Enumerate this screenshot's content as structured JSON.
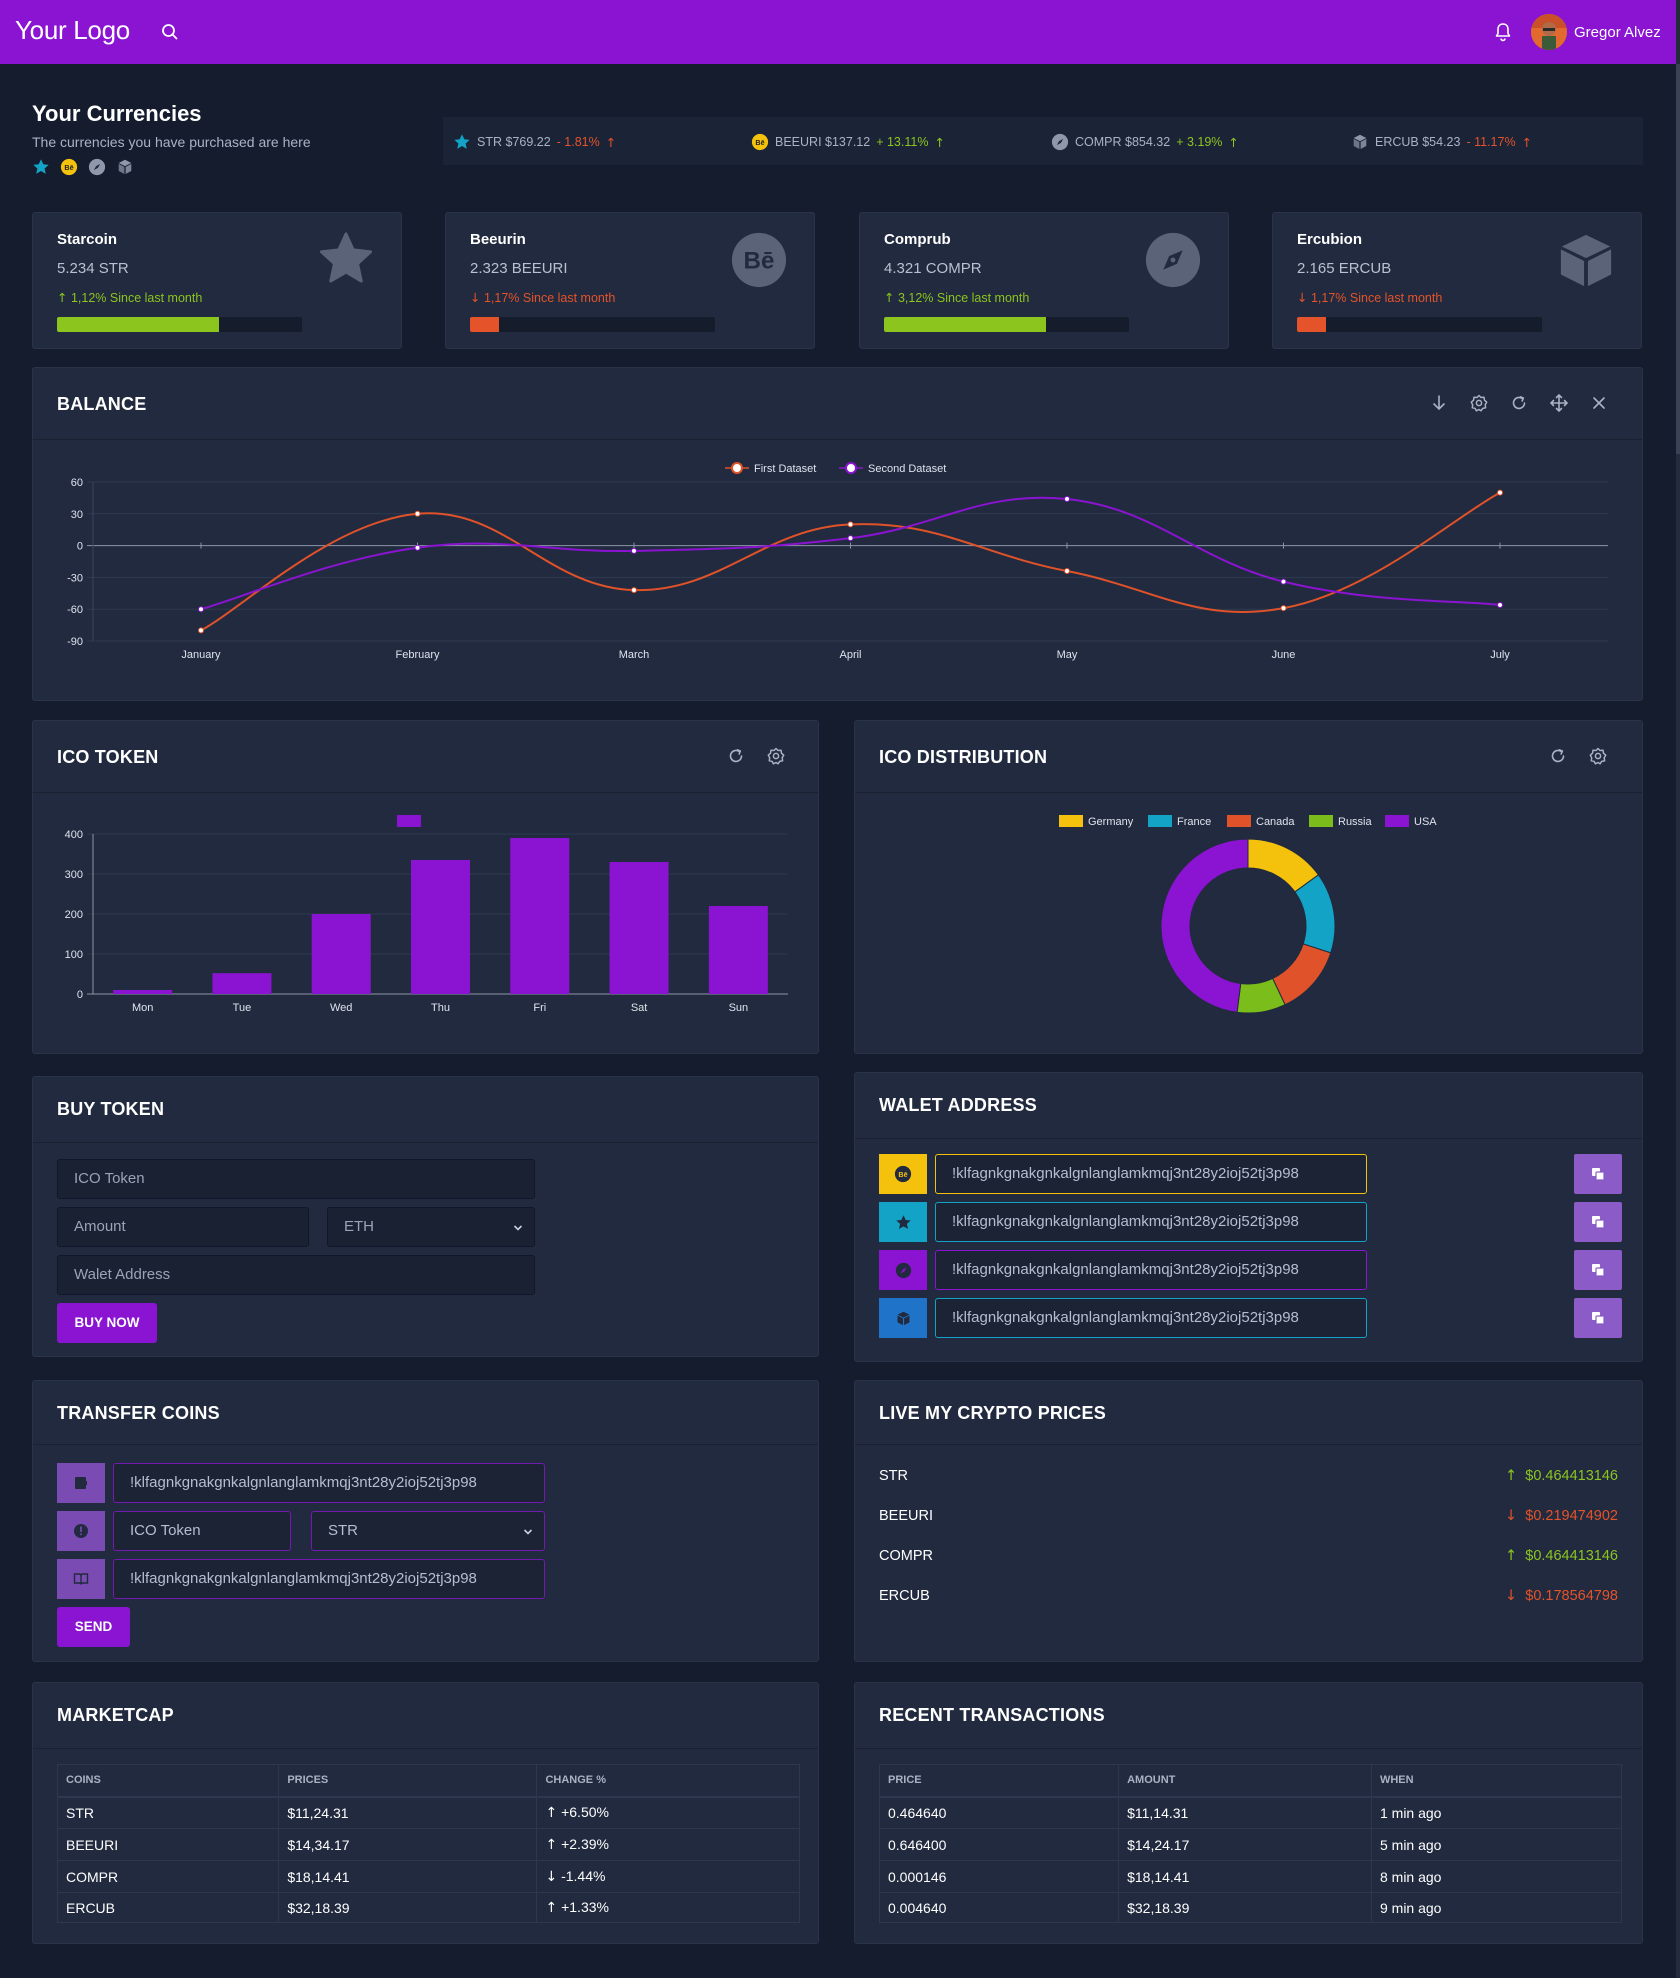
{
  "header": {
    "logo": "Your Logo",
    "user_name": "Gregor Alvez"
  },
  "currencies": {
    "title": "Your Currencies",
    "subtitle": "The currencies you have purchased are here",
    "ticker": [
      {
        "text": "STR $769.22",
        "change": "- 1.81%",
        "direction": "up",
        "color": "#e4532a",
        "icon": "star-icon"
      },
      {
        "text": "BEEURI $137.12",
        "change": "+ 13.11%",
        "direction": "up",
        "color": "#8cc51e",
        "icon": "behance-icon"
      },
      {
        "text": "COMPR $854.32",
        "change": "+ 3.19%",
        "direction": "up",
        "color": "#8cc51e",
        "icon": "compass-icon"
      },
      {
        "text": "ERCUB $54.23",
        "change": "- 11.17%",
        "direction": "up",
        "color": "#e4532a",
        "icon": "cube-icon"
      }
    ],
    "cards": [
      {
        "name": "Starcoin",
        "amount": "5.234 STR",
        "change": "1,12% Since last month",
        "arrow": "↑",
        "direction": "up",
        "progress": 0.66,
        "icon": "star-icon"
      },
      {
        "name": "Beeurin",
        "amount": "2.323 BEEURI",
        "change": "1,17% Since last month",
        "arrow": "↓",
        "direction": "down",
        "progress": 0.12,
        "icon": "behance-icon"
      },
      {
        "name": "Comprub",
        "amount": "4.321 COMPR",
        "change": "3,12% Since last month",
        "arrow": "↑",
        "direction": "up",
        "progress": 0.66,
        "icon": "compass-icon"
      },
      {
        "name": "Ercubion",
        "amount": "2.165 ERCUB",
        "change": "1,17% Since last month",
        "arrow": "↓",
        "direction": "down",
        "progress": 0.12,
        "icon": "cube-icon"
      }
    ]
  },
  "balance": {
    "title": "BALANCE"
  },
  "ico_token": {
    "title": "ICO TOKEN"
  },
  "ico_distribution": {
    "title": "ICO DISTRIBUTION"
  },
  "chart_data": [
    {
      "type": "line",
      "x": [
        "January",
        "February",
        "March",
        "April",
        "May",
        "June",
        "July"
      ],
      "ylim": [
        -90,
        60
      ],
      "yticks": [
        60,
        30,
        0,
        -30,
        -60,
        -90
      ],
      "series": [
        {
          "name": "First Dataset",
          "color": "#e0522a",
          "values": [
            -80,
            30,
            -42,
            20,
            -24,
            -59,
            50
          ]
        },
        {
          "name": "Second Dataset",
          "color": "#8a14d1",
          "values": [
            -60,
            -2,
            -5,
            7,
            44,
            -34,
            -56
          ]
        }
      ],
      "legend": "top-center",
      "grid": true
    },
    {
      "type": "bar",
      "categories": [
        "Mon",
        "Tue",
        "Wed",
        "Thu",
        "Fri",
        "Sat",
        "Sun"
      ],
      "values": [
        10,
        52,
        200,
        335,
        390,
        330,
        220
      ],
      "ylim": [
        0,
        400
      ],
      "yticks": [
        400,
        300,
        200,
        100,
        0
      ],
      "color": "#8a14d1",
      "legend": "top-center",
      "grid": true
    },
    {
      "type": "pie",
      "labels": [
        "Germany",
        "France",
        "Canada",
        "Russia",
        "USA"
      ],
      "values": [
        15,
        15,
        13,
        9,
        48
      ],
      "colors": [
        "#f4c20d",
        "#12a3c6",
        "#e0522a",
        "#7bbd1a",
        "#8a14d1"
      ],
      "legend": "top-center"
    }
  ],
  "buy_token": {
    "title": "BUY TOKEN",
    "ico_placeholder": "ICO Token",
    "amount_placeholder": "Amount",
    "currency": "ETH",
    "address_placeholder": "Walet Address",
    "button": "BUY NOW"
  },
  "wallet": {
    "title": "WALET ADDRESS",
    "rows": [
      {
        "address": "!klfagnkgnakgnkalgnlanglamkmqj3nt28y2ioj52tj3p98",
        "color": "#f4c20d",
        "icon": "behance-icon"
      },
      {
        "address": "!klfagnkgnakgnkalgnlanglamkmqj3nt28y2ioj52tj3p98",
        "color": "#12a3c6",
        "icon": "star-icon"
      },
      {
        "address": "!klfagnkgnakgnkalgnlanglamkmqj3nt28y2ioj52tj3p98",
        "color": "#8a14d1",
        "icon": "compass-icon"
      },
      {
        "address": "!klfagnkgnakgnkalgnlanglamkmqj3nt28y2ioj52tj3p98",
        "color": "#1f74c9",
        "icon": "cube-icon"
      }
    ]
  },
  "transfer": {
    "title": "TRANSFER COINS",
    "address_from": "!klfagnkgnakgnkalgnlanglamkmqj3nt28y2ioj52tj3p98",
    "ico_placeholder": "ICO Token",
    "currency": "STR",
    "address_to": "!klfagnkgnakgnkalgnlanglamkmqj3nt28y2ioj52tj3p98",
    "button": "SEND"
  },
  "live_prices": {
    "title": "LIVE MY CRYPTO PRICES",
    "rows": [
      {
        "coin": "STR",
        "price": "$0.464413146",
        "direction": "up"
      },
      {
        "coin": "BEEURI",
        "price": "$0.219474902",
        "direction": "down"
      },
      {
        "coin": "COMPR",
        "price": "$0.464413146",
        "direction": "up"
      },
      {
        "coin": "ERCUB",
        "price": "$0.178564798",
        "direction": "down"
      }
    ]
  },
  "marketcap": {
    "title": "MARKETCAP",
    "headers": [
      "COINS",
      "PRICES",
      "CHANGE %"
    ],
    "rows": [
      [
        "STR",
        "$11,24.31",
        "↑",
        "+6.50%"
      ],
      [
        "BEEURI",
        "$14,34.17",
        "↑",
        "+2.39%"
      ],
      [
        "COMPR",
        "$18,14.41",
        "↓",
        "-1.44%"
      ],
      [
        "ERCUB",
        "$32,18.39",
        "↑",
        "+1.33%"
      ]
    ]
  },
  "transactions": {
    "title": "RECENT TRANSACTIONS",
    "headers": [
      "PRICE",
      "AMOUNT",
      "WHEN"
    ],
    "rows": [
      [
        "0.464640",
        "$11,14.31",
        "1 min ago"
      ],
      [
        "0.646400",
        "$14,24.17",
        "5 min ago"
      ],
      [
        "0.000146",
        "$18,14.41",
        "8 min ago"
      ],
      [
        "0.004640",
        "$32,18.39",
        "9 min ago"
      ]
    ]
  }
}
